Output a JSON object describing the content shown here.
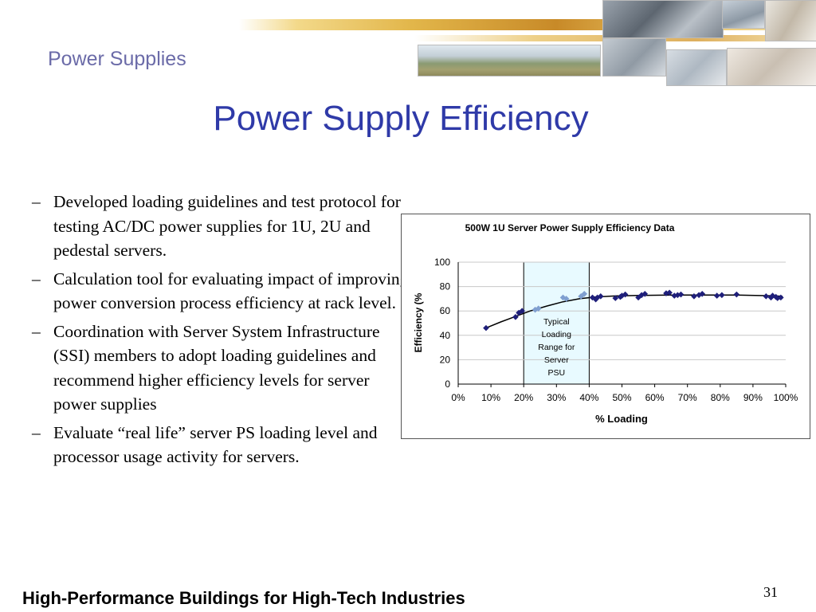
{
  "header": {
    "section_title": "Power Supplies",
    "slide_title": "Power Supply Efficiency"
  },
  "bullets": [
    "Developed loading guidelines and test protocol for testing AC/DC power supplies for 1U, 2U and pedestal servers.",
    "Calculation tool for evaluating impact of improving power conversion process efficiency at rack level.",
    "Coordination with Server System Infrastructure (SSI) members to adopt loading guidelines and recommend higher efficiency levels for server power supplies",
    "Evaluate “real life” server PS loading level and processor usage activity for servers."
  ],
  "bullet_marker": "–",
  "colors": {
    "title": "#2f3aa8",
    "section_title": "#6b6ba8",
    "marker_dark": "#1f1f7a",
    "marker_light": "#7f9fd0",
    "highlight_fill": "#e8faff"
  },
  "chart_data": {
    "type": "scatter",
    "title": "500W 1U Server Power Supply Efficiency Data",
    "xlabel": "% Loading",
    "ylabel": "Efficiency (%",
    "xlim": [
      0,
      100
    ],
    "ylim": [
      0,
      100
    ],
    "x_ticks": [
      "0%",
      "10%",
      "20%",
      "30%",
      "40%",
      "50%",
      "60%",
      "70%",
      "80%",
      "90%",
      "100%"
    ],
    "y_ticks": [
      "0",
      "20",
      "40",
      "60",
      "80",
      "100"
    ],
    "grid": "horizontal",
    "highlight_region": {
      "x": [
        20,
        40
      ],
      "label": [
        "Typical",
        "Loading",
        "Range for",
        "Server",
        "PSU"
      ]
    },
    "series": [
      {
        "color": "#1f1f7a",
        "points": [
          [
            8.5,
            46
          ],
          [
            17.5,
            55
          ],
          [
            18.5,
            58.5
          ],
          [
            19.5,
            60
          ],
          [
            41,
            71
          ],
          [
            42,
            69.5
          ],
          [
            42.5,
            71
          ],
          [
            43.5,
            72
          ],
          [
            48,
            70.5
          ],
          [
            49.5,
            71.5
          ],
          [
            50,
            72.5
          ],
          [
            51,
            73.5
          ],
          [
            55,
            71
          ],
          [
            56,
            73
          ],
          [
            57,
            74
          ],
          [
            63.5,
            74.5
          ],
          [
            64.5,
            75
          ],
          [
            66,
            72.5
          ],
          [
            67,
            73
          ],
          [
            68,
            73.5
          ],
          [
            72,
            72
          ],
          [
            73.5,
            73
          ],
          [
            74.5,
            74
          ],
          [
            79,
            72.5
          ],
          [
            80.5,
            73
          ],
          [
            85,
            73.5
          ],
          [
            94,
            72
          ],
          [
            95.5,
            71
          ],
          [
            96,
            72.5
          ],
          [
            97,
            71.5
          ],
          [
            97.5,
            70.5
          ],
          [
            98.5,
            71
          ]
        ]
      },
      {
        "color": "#7f9fd0",
        "points": [
          [
            23.5,
            61
          ],
          [
            24.5,
            62
          ],
          [
            32,
            71
          ],
          [
            33,
            70
          ],
          [
            37.5,
            72
          ],
          [
            38.5,
            74
          ]
        ]
      }
    ],
    "trendline": [
      [
        8.5,
        46
      ],
      [
        13,
        51
      ],
      [
        18,
        56
      ],
      [
        22,
        60
      ],
      [
        27,
        64
      ],
      [
        32,
        67.5
      ],
      [
        37,
        70
      ],
      [
        42,
        71.5
      ],
      [
        48,
        72.3
      ],
      [
        55,
        72.7
      ],
      [
        65,
        73
      ],
      [
        75,
        73
      ],
      [
        85,
        73
      ],
      [
        95,
        72.5
      ],
      [
        99,
        72
      ]
    ]
  },
  "footer": {
    "text": "High-Performance Buildings for High-Tech Industries",
    "page_number": "31"
  }
}
